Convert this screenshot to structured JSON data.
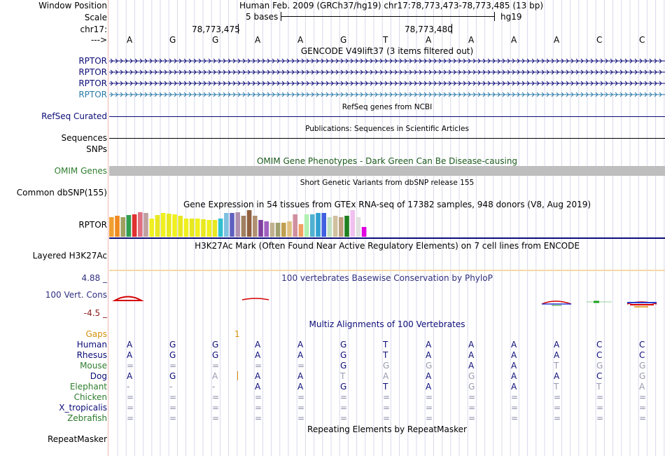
{
  "header": {
    "window_position_label": "Window Position",
    "window_position_value": "Human Feb. 2009 (GRCh37/hg19)   chr17:78,773,473-78,773,485 (13 bp)",
    "scale_label": "Scale",
    "scale_text": "5 bases",
    "scale_assembly": "hg19",
    "chrom_label": "chr17:",
    "pos_tick_1": "78,773,475",
    "pos_tick_2": "78,773,480",
    "strand_label": "--->",
    "bases": [
      "A",
      "G",
      "G",
      "A",
      "A",
      "G",
      "T",
      "A",
      "A",
      "A",
      "A",
      "C",
      "C"
    ]
  },
  "tracks": {
    "gencode": {
      "title": "GENCODE V49lift37 (3 items filtered out)",
      "items": [
        "RPTOR",
        "RPTOR",
        "RPTOR",
        "RPTOR"
      ],
      "colors": [
        "#0c0c78",
        "#0c0c78",
        "#0c0c78",
        "#2a7aa8"
      ]
    },
    "refseq": {
      "title": "RefSeq genes from NCBI",
      "label": "RefSeq Curated"
    },
    "pubs": {
      "title": "Publications: Sequences in Scientific Articles",
      "label": "Sequences"
    },
    "snps": {
      "label": "SNPs"
    },
    "omim": {
      "title": "OMIM Gene Phenotypes - Dark Green Can Be Disease-causing",
      "label": "OMIM Genes"
    },
    "dbsnp": {
      "title": "Short Genetic Variants from dbSNP release 155",
      "label": "Common dbSNP(155)"
    },
    "gtex": {
      "title": "Gene Expression in 54 tissues from GTEx RNA-seq of 17382 samples, 948 donors (V8, Aug 2019)",
      "label": "RPTOR"
    },
    "h3k27ac": {
      "title": "H3K27Ac Mark (Often Found Near Active Regulatory Elements) on 7 cell lines from ENCODE",
      "label": "Layered H3K27Ac"
    },
    "phylop": {
      "title": "100 vertebrates Basewise Conservation by PhyloP",
      "label": "100 Vert. Cons",
      "max": "4.88 _",
      "min": "-4.5 _"
    },
    "multiz": {
      "title": "Multiz Alignments of 100 Vertebrates",
      "gaps_label": "Gaps",
      "gap_value": "1",
      "species": [
        {
          "name": "Human",
          "color": "#0c0c78",
          "bases": [
            "A",
            "G",
            "G",
            "A",
            "A",
            "G",
            "T",
            "A",
            "A",
            "A",
            "A",
            "C",
            "C"
          ]
        },
        {
          "name": "Rhesus",
          "color": "#0c0c78",
          "bases": [
            "A",
            "G",
            "G",
            "A",
            "A",
            "G",
            "T",
            "A",
            "A",
            "A",
            "A",
            "C",
            "C"
          ]
        },
        {
          "name": "Mouse",
          "color": "#2e7d2e",
          "bases": [
            "=",
            "=",
            "=",
            "=",
            "=",
            "G",
            "G",
            "G",
            "A",
            "A",
            "T",
            "G",
            "G"
          ]
        },
        {
          "name": "Dog",
          "color": "#0c0c78",
          "bases": [
            "A",
            "G",
            "A",
            "A",
            "A",
            "T",
            "A",
            "A",
            "G",
            "A",
            "A",
            "C",
            "G"
          ]
        },
        {
          "name": "Elephant",
          "color": "#2e7d2e",
          "bases": [
            "-",
            "-",
            "-",
            "A",
            "A",
            "G",
            "T",
            "A",
            "G",
            "A",
            "T",
            "T",
            "A"
          ]
        },
        {
          "name": "Chicken",
          "color": "#2e7d2e",
          "bases": [
            "=",
            "=",
            "=",
            "=",
            "=",
            "=",
            "=",
            "=",
            "=",
            "=",
            "=",
            "=",
            "="
          ]
        },
        {
          "name": "X_tropicalis",
          "color": "#0c0c78",
          "bases": [
            "=",
            "=",
            "=",
            "=",
            "=",
            "=",
            "=",
            "=",
            "=",
            "=",
            "=",
            "=",
            "="
          ]
        },
        {
          "name": "Zebrafish",
          "color": "#2e7d2e",
          "bases": [
            "=",
            "=",
            "=",
            "=",
            "=",
            "=",
            "=",
            "=",
            "=",
            "=",
            "=",
            "=",
            "="
          ]
        }
      ]
    },
    "repeatmasker": {
      "title": "Repeating Elements by RepeatMasker",
      "label": "RepeatMasker"
    }
  },
  "colors": {
    "navy": "#0c0c78",
    "green": "#2e7d2e",
    "gaps": "#d4900a",
    "dim": "#9a9ab0",
    "phylop_neg": "#8b1a1a"
  }
}
